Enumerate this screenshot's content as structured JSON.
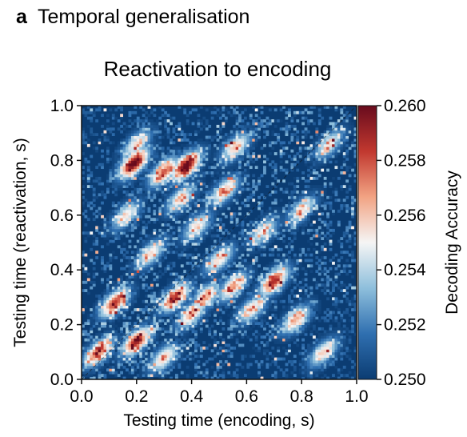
{
  "panel": {
    "letter": "a",
    "heading": "Temporal generalisation"
  },
  "chart_data": {
    "type": "heatmap",
    "title": "Reactivation to encoding",
    "xlabel": "Testing time (encoding, s)",
    "ylabel": "Testing time (reactivation, s)",
    "xlim": [
      0.0,
      1.0
    ],
    "ylim": [
      0.0,
      1.0
    ],
    "x_ticks": [
      "0.0",
      "0.2",
      "0.4",
      "0.6",
      "0.8",
      "1.0"
    ],
    "y_ticks": [
      "0.0",
      "0.2",
      "0.4",
      "0.6",
      "0.8",
      "1.0"
    ],
    "colorbar": {
      "label": "Decoding Accuracy",
      "range": [
        0.25,
        0.26
      ],
      "ticks": [
        "0.250",
        "0.252",
        "0.254",
        "0.256",
        "0.258",
        "0.260"
      ],
      "colormap": "RdBu_r",
      "colors": [
        "#0b3c72",
        "#2f6fb0",
        "#8ebfdc",
        "#f5f5f5",
        "#f2a383",
        "#c1382f",
        "#680b1d"
      ]
    },
    "background_value": 0.25,
    "hotspots": [
      {
        "x": 0.19,
        "y": 0.79,
        "peak": 0.2603
      },
      {
        "x": 0.38,
        "y": 0.78,
        "peak": 0.2603
      },
      {
        "x": 0.3,
        "y": 0.76,
        "peak": 0.258
      },
      {
        "x": 0.56,
        "y": 0.85,
        "peak": 0.256
      },
      {
        "x": 0.2,
        "y": 0.86,
        "peak": 0.2557
      },
      {
        "x": 0.52,
        "y": 0.69,
        "peak": 0.2562
      },
      {
        "x": 0.36,
        "y": 0.66,
        "peak": 0.2558
      },
      {
        "x": 0.42,
        "y": 0.56,
        "peak": 0.2556
      },
      {
        "x": 0.16,
        "y": 0.6,
        "peak": 0.2555
      },
      {
        "x": 0.12,
        "y": 0.28,
        "peak": 0.2585
      },
      {
        "x": 0.2,
        "y": 0.14,
        "peak": 0.2592
      },
      {
        "x": 0.06,
        "y": 0.1,
        "peak": 0.258
      },
      {
        "x": 0.34,
        "y": 0.3,
        "peak": 0.2585
      },
      {
        "x": 0.45,
        "y": 0.3,
        "peak": 0.257
      },
      {
        "x": 0.4,
        "y": 0.24,
        "peak": 0.2565
      },
      {
        "x": 0.55,
        "y": 0.34,
        "peak": 0.2568
      },
      {
        "x": 0.7,
        "y": 0.36,
        "peak": 0.2588
      },
      {
        "x": 0.78,
        "y": 0.22,
        "peak": 0.2565
      },
      {
        "x": 0.62,
        "y": 0.26,
        "peak": 0.256
      },
      {
        "x": 0.88,
        "y": 0.1,
        "peak": 0.2558
      },
      {
        "x": 0.25,
        "y": 0.46,
        "peak": 0.2556
      },
      {
        "x": 0.5,
        "y": 0.44,
        "peak": 0.256
      },
      {
        "x": 0.8,
        "y": 0.62,
        "peak": 0.2555
      },
      {
        "x": 0.3,
        "y": 0.08,
        "peak": 0.256
      },
      {
        "x": 0.66,
        "y": 0.54,
        "peak": 0.2553
      },
      {
        "x": 0.9,
        "y": 0.86,
        "peak": 0.2553
      }
    ]
  }
}
